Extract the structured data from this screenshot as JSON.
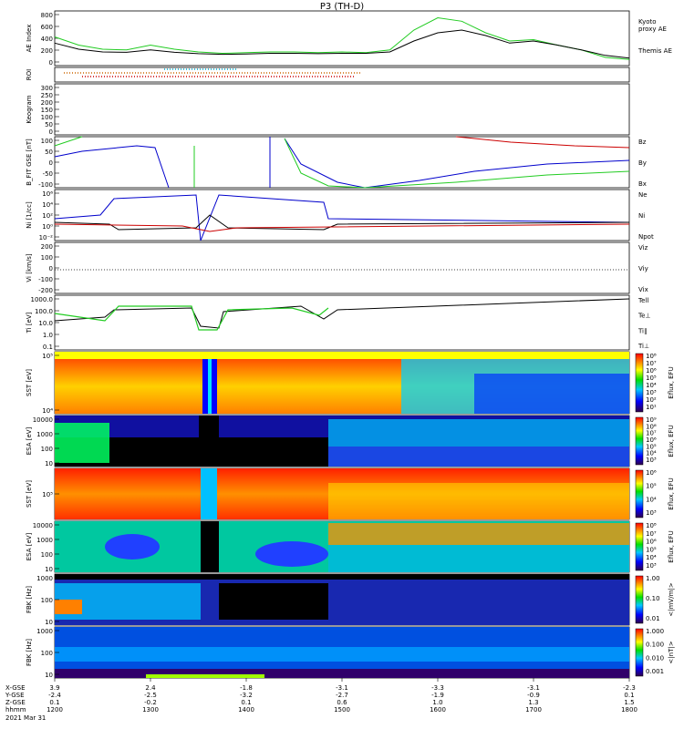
{
  "title": "P3 (TH-D)",
  "chart_data": [
    {
      "type": "line",
      "panel": "ae",
      "ylabel": "AE Index",
      "yticks": [
        "800",
        "600",
        "400",
        "200",
        "0"
      ],
      "ylim": [
        0,
        800
      ],
      "x": [
        1200,
        1225,
        1250,
        1275,
        1300,
        1325,
        1350,
        1375,
        1400,
        1425,
        1450,
        1475,
        1500,
        1525,
        1550,
        1575,
        1600,
        1625,
        1650,
        1675,
        1700,
        1725,
        1750,
        1775,
        1800
      ],
      "series": [
        {
          "name": "Kyoto proxy AE",
          "color": "#22cc22",
          "values": [
            420,
            300,
            240,
            230,
            300,
            240,
            200,
            180,
            190,
            200,
            200,
            190,
            200,
            190,
            230,
            520,
            700,
            650,
            480,
            360,
            380,
            300,
            230,
            120,
            90
          ]
        },
        {
          "name": "Themis AE",
          "color": "#000000",
          "values": [
            330,
            240,
            200,
            195,
            230,
            195,
            175,
            165,
            170,
            180,
            180,
            175,
            180,
            180,
            200,
            360,
            480,
            520,
            440,
            330,
            360,
            300,
            230,
            150,
            110
          ]
        }
      ],
      "legend": [
        "Kyoto",
        "proxy AE",
        "Themis AE"
      ]
    },
    {
      "type": "line",
      "panel": "roi",
      "ylabel": "ROI"
    },
    {
      "type": "line",
      "panel": "keogram",
      "ylabel": "Keogram",
      "yticks": [
        "300",
        "250",
        "200",
        "150",
        "100",
        "50",
        "0"
      ]
    },
    {
      "type": "line",
      "panel": "bfield",
      "ylabel": "B_FIT GSE [nT]",
      "yticks": [
        "100",
        "50",
        "0",
        "-50",
        "-100"
      ],
      "ylim": [
        -100,
        100
      ],
      "series": [
        {
          "name": "Bz",
          "color": "#cc0000"
        },
        {
          "name": "By",
          "color": "#22cc22"
        },
        {
          "name": "Bx",
          "color": "#0000cc"
        }
      ]
    },
    {
      "type": "line",
      "panel": "density",
      "ylabel": "Ni",
      "unit": "[1/cc]",
      "yticks": [
        "10⁶",
        "10⁴",
        "10²",
        "10⁰",
        "10⁻²"
      ],
      "series": [
        {
          "name": "Ne",
          "color": "#cc0000"
        },
        {
          "name": "Ni",
          "color": "#000000"
        },
        {
          "name": "Npot",
          "color": "#0000cc"
        }
      ]
    },
    {
      "type": "line",
      "panel": "velocity",
      "ylabel": "Vi",
      "unit": "[km/s]",
      "yticks": [
        "200",
        "100",
        "0",
        "-100",
        "-200"
      ],
      "series": [
        {
          "name": "Viz",
          "color": "#cc0000"
        },
        {
          "name": "Viy",
          "color": "#22cc22"
        },
        {
          "name": "Vix",
          "color": "#0000cc"
        }
      ]
    },
    {
      "type": "line",
      "panel": "temperature",
      "ylabel": "Ti",
      "unit": "[eV]",
      "yticks": [
        "1000.0",
        "100.0",
        "10.0",
        "1.0",
        "0.1"
      ],
      "series": [
        {
          "name": "Tell",
          "color": "#000000"
        },
        {
          "name": "Te⊥",
          "color": "#cc0000"
        },
        {
          "name": "Ti∥",
          "color": "#22cc22"
        },
        {
          "name": "Ti⊥",
          "color": "#0000cc"
        }
      ]
    },
    {
      "type": "heatmap",
      "panel": "sst_e",
      "ylabel": "SST",
      "unit": "[eV]",
      "yticks": [
        "10⁵",
        "10⁴"
      ],
      "cbar": "Eflux, EFU",
      "cbar_ticks": [
        "10⁸",
        "10⁷",
        "10⁶",
        "10⁵",
        "10⁴",
        "10³",
        "10²",
        "10¹"
      ]
    },
    {
      "type": "heatmap",
      "panel": "esa_e",
      "ylabel": "ESA",
      "unit": "[eV]",
      "yticks": [
        "10000",
        "1000",
        "100",
        "10"
      ],
      "cbar": "Eflux, EFU",
      "cbar_ticks": [
        "10⁹",
        "10⁸",
        "10⁷",
        "10⁶",
        "10⁵",
        "10⁴",
        "10³"
      ]
    },
    {
      "type": "heatmap",
      "panel": "sst_i",
      "ylabel": "SST",
      "unit": "[eV]",
      "yticks": [
        "10⁵"
      ],
      "cbar": "Eflux, EFU",
      "cbar_ticks": [
        "10⁶",
        "10⁵",
        "10⁴",
        "10³"
      ]
    },
    {
      "type": "heatmap",
      "panel": "esa_i",
      "ylabel": "ESA",
      "unit": "[eV]",
      "yticks": [
        "10000",
        "1000",
        "100",
        "10"
      ],
      "cbar": "Eflux, EFU",
      "cbar_ticks": [
        "10⁸",
        "10⁷",
        "10⁶",
        "10⁵",
        "10⁴",
        "10³"
      ]
    },
    {
      "type": "heatmap",
      "panel": "fbk_edc",
      "ylabel": "FBK",
      "unit": "[Hz]",
      "yticks": [
        "1000",
        "100",
        "10"
      ],
      "cbar": "<|mV/m|>",
      "cbar_ticks": [
        "1.00",
        "0.10",
        "0.01"
      ]
    },
    {
      "type": "heatmap",
      "panel": "fbk_scm",
      "ylabel": "FBK",
      "unit": "[Hz]",
      "yticks": [
        "1000",
        "100",
        "10"
      ],
      "cbar": "<|nT|>",
      "cbar_ticks": [
        "1.000",
        "0.100",
        "0.010",
        "0.001"
      ]
    }
  ],
  "xaxis": {
    "row_labels": [
      "X-GSE",
      "Y-GSE",
      "Z-GSE",
      "hhmm",
      "2021 Mar 31"
    ],
    "columns": [
      {
        "x": 1200,
        "X-GSE": "3.9",
        "Y-GSE": "-2.4",
        "Z-GSE": "0.1",
        "hhmm": "1200"
      },
      {
        "x": 1300,
        "X-GSE": "2.4",
        "Y-GSE": "-2.5",
        "Z-GSE": "-0.2",
        "hhmm": "1300"
      },
      {
        "x": 1400,
        "X-GSE": "-1.8",
        "Y-GSE": "-3.2",
        "Z-GSE": "0.1",
        "hhmm": "1400"
      },
      {
        "x": 1500,
        "X-GSE": "-3.1",
        "Y-GSE": "-2.7",
        "Z-GSE": "0.6",
        "hhmm": "1500"
      },
      {
        "x": 1600,
        "X-GSE": "-3.3",
        "Y-GSE": "-1.9",
        "Z-GSE": "1.0",
        "hhmm": "1600"
      },
      {
        "x": 1700,
        "X-GSE": "-3.1",
        "Y-GSE": "-0.9",
        "Z-GSE": "1.3",
        "hhmm": "1700"
      },
      {
        "x": 1800,
        "X-GSE": "-2.3",
        "Y-GSE": "0.1",
        "Z-GSE": "1.5",
        "hhmm": "1800"
      }
    ]
  }
}
